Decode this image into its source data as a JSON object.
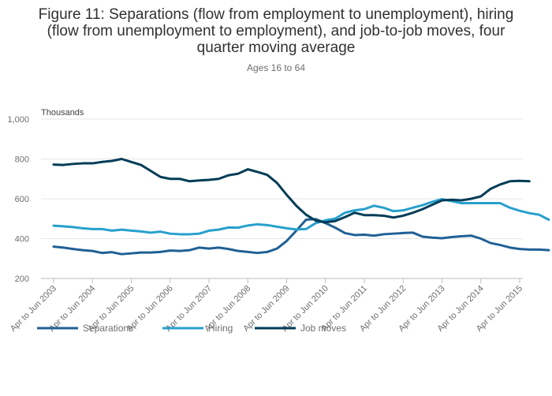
{
  "chart_data": {
    "type": "line",
    "title_lines": [
      "Figure 11: Separations (flow from employment to unemployment), hiring",
      "(flow from unemployment to employment), and job-to-job moves, four",
      "quarter moving average"
    ],
    "subtitle": "Ages 16 to 64",
    "ylabel": "Thousands",
    "ylim": [
      200,
      1000
    ],
    "yticks": [
      200,
      400,
      600,
      800,
      1000
    ],
    "ytick_labels": [
      "200",
      "400",
      "600",
      "800",
      "1,000"
    ],
    "xtick_labels": [
      "Apr to Jun 2003",
      "Apr to Jun 2004",
      "Apr to Jun 2005",
      "Apr to Jun 2006",
      "Apr to Jun 2007",
      "Apr to Jun 2008",
      "Apr to Jun 2009",
      "Apr to Jun 2010",
      "Apr to Jun 2011",
      "Apr to Jun 2012",
      "Apr to Jun 2013",
      "Apr to Jun 2014",
      "Apr to Jun 2015"
    ],
    "x_start": 2003.0,
    "x_step": 0.25,
    "series": [
      {
        "name": "Separations",
        "color": "#206095",
        "values": [
          360,
          355,
          348,
          342,
          338,
          328,
          332,
          322,
          326,
          330,
          330,
          333,
          340,
          338,
          342,
          355,
          350,
          355,
          348,
          338,
          333,
          328,
          333,
          350,
          388,
          440,
          495,
          498,
          478,
          455,
          428,
          418,
          420,
          415,
          422,
          425,
          428,
          430,
          410,
          405,
          402,
          408,
          412,
          415,
          400,
          378,
          368,
          355,
          348,
          345,
          345,
          342
        ]
      },
      {
        "name": "Hiring",
        "color": "#27a0cc",
        "values": [
          465,
          462,
          458,
          452,
          448,
          448,
          440,
          445,
          440,
          436,
          430,
          435,
          425,
          422,
          422,
          425,
          440,
          445,
          456,
          455,
          466,
          472,
          468,
          460,
          452,
          446,
          448,
          478,
          492,
          500,
          530,
          542,
          548,
          565,
          555,
          538,
          542,
          555,
          568,
          585,
          598,
          588,
          578,
          578,
          578,
          578,
          578,
          555,
          540,
          528,
          520,
          495
        ]
      },
      {
        "name": "Job moves",
        "color": "#003c57",
        "values": [
          772,
          770,
          775,
          778,
          778,
          785,
          790,
          800,
          785,
          770,
          740,
          710,
          700,
          700,
          688,
          692,
          695,
          700,
          718,
          726,
          748,
          735,
          720,
          680,
          620,
          565,
          520,
          490,
          482,
          488,
          508,
          530,
          518,
          518,
          515,
          506,
          515,
          530,
          548,
          570,
          592,
          595,
          592,
          600,
          612,
          650,
          672,
          688,
          690,
          688
        ]
      }
    ],
    "legend_position": "bottom"
  }
}
